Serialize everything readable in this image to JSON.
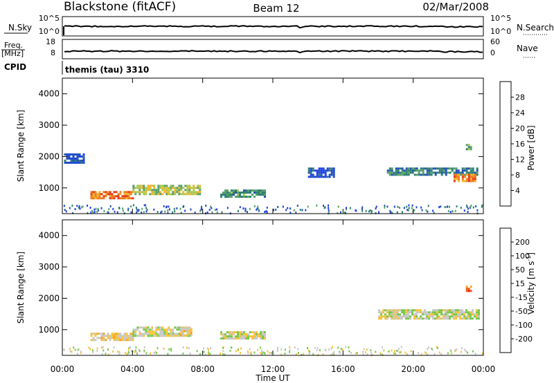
{
  "header": {
    "station": "Blackstone (fitACF)",
    "beam": "Beam 12",
    "date": "02/Mar/2008"
  },
  "top_panels": {
    "nsky": {
      "label": "N.Sky",
      "tick_top": "10^5",
      "tick_bottom": "10^0"
    },
    "nsearch": {
      "label": "N.Search",
      "tick_top": "10^5",
      "tick_bottom": "10^0"
    },
    "freq": {
      "label_line1": "Freq.",
      "label_line2": "[MHz]",
      "tick_top": "18",
      "tick_bottom": "8"
    },
    "nave": {
      "label": "Nave",
      "tick_top": "60",
      "tick_bottom": "0"
    },
    "cpid": {
      "label": "CPID",
      "program": "themis (tau) 3310"
    }
  },
  "colors": {
    "power": [
      "#1d3df2",
      "#1f4fb8",
      "#2e7f6e",
      "#55a06a",
      "#a8c84a",
      "#f0b42a",
      "#f07a1c",
      "#e83a1a",
      "#e0001a"
    ],
    "velocity": [
      "#f01010",
      "#f05a10",
      "#f5a020",
      "#f7c23a",
      "#c8c8c8",
      "#78c84a",
      "#3a8a5a",
      "#2a5ab0",
      "#2030c8"
    ]
  },
  "chart_data": [
    {
      "type": "heatmap",
      "title": "",
      "xlabel": "",
      "ylabel": "Slant Range [km]",
      "xlim": [
        "00:00",
        "24:00"
      ],
      "ylim": [
        180,
        4500
      ],
      "y_ticks": [
        "1000",
        "2000",
        "3000",
        "4000"
      ],
      "colorbar": {
        "label": "Power [dB]",
        "ticks": [
          "4",
          "8",
          "12",
          "16",
          "20",
          "24",
          "28"
        ],
        "range": [
          0,
          30
        ]
      },
      "regions": [
        {
          "t": [
            1.6,
            4.0
          ],
          "range": [
            700,
            900
          ],
          "value": 22
        },
        {
          "t": [
            4.0,
            7.9
          ],
          "range": [
            800,
            1100
          ],
          "value": 15
        },
        {
          "t": [
            9.0,
            11.6
          ],
          "range": [
            700,
            950
          ],
          "value": 10
        },
        {
          "t": [
            14.0,
            15.5
          ],
          "range": [
            1350,
            1650
          ],
          "value": 4
        },
        {
          "t": [
            18.5,
            23.7
          ],
          "range": [
            1420,
            1650
          ],
          "value": 8
        },
        {
          "t": [
            22.3,
            23.6
          ],
          "range": [
            1250,
            1450
          ],
          "value": 22
        },
        {
          "t": [
            23.0,
            23.3
          ],
          "range": [
            2250,
            2400
          ],
          "value": 11
        },
        {
          "t": [
            0.1,
            1.2
          ],
          "range": [
            1800,
            2100
          ],
          "value": 4
        }
      ]
    },
    {
      "type": "heatmap",
      "title": "",
      "xlabel": "Time UT",
      "ylabel": "Slant Range [km]",
      "xlim": [
        "00:00",
        "24:00"
      ],
      "ylim": [
        180,
        4500
      ],
      "y_ticks": [
        "1000",
        "2000",
        "3000",
        "4000"
      ],
      "x_ticks": [
        "00:00",
        "04:00",
        "08:00",
        "12:00",
        "16:00",
        "20:00",
        "00:00"
      ],
      "colorbar": {
        "label": "Velocity [m s^-1]",
        "ticks": [
          "-200",
          "-100",
          "-50",
          "-15",
          "15",
          "50",
          "100",
          "200"
        ],
        "range": [
          -250,
          250
        ]
      },
      "regions": [
        {
          "t": [
            1.6,
            4.0
          ],
          "range": [
            700,
            900
          ],
          "value": -40
        },
        {
          "t": [
            4.0,
            7.2
          ],
          "range": [
            800,
            1100
          ],
          "value": 0
        },
        {
          "t": [
            6.7,
            7.3
          ],
          "range": [
            800,
            1050
          ],
          "value": -40
        },
        {
          "t": [
            9.0,
            11.6
          ],
          "range": [
            700,
            950
          ],
          "value": 0
        },
        {
          "t": [
            18.0,
            23.8
          ],
          "range": [
            1350,
            1650
          ],
          "value": 0
        },
        {
          "t": [
            23.0,
            23.3
          ],
          "range": [
            2250,
            2400
          ],
          "value": -180
        }
      ]
    }
  ]
}
